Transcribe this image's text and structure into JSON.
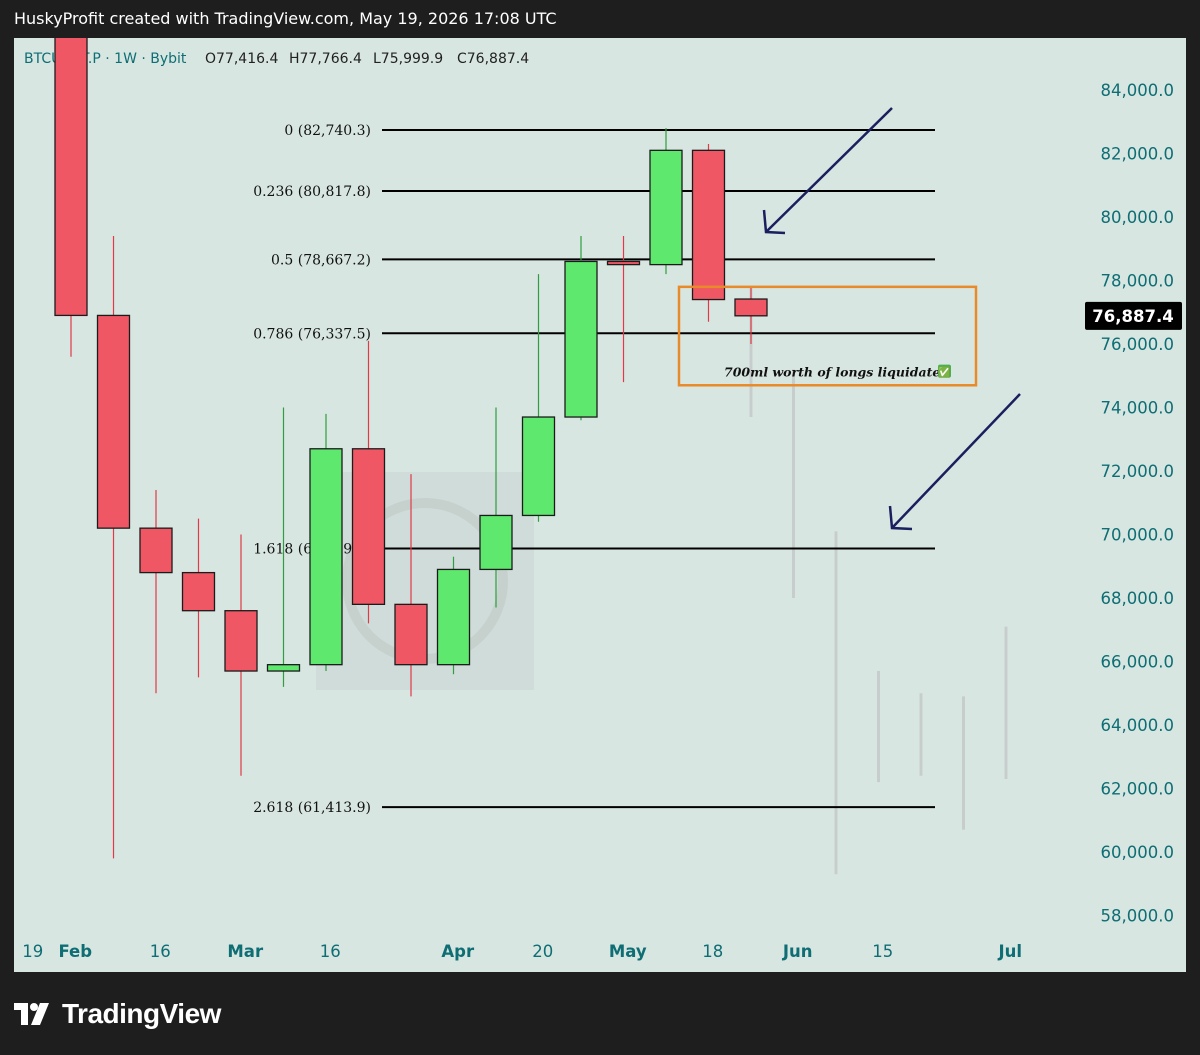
{
  "header": {
    "attribution": "HuskyProfit created with TradingView.com, May 19, 2026 17:08 UTC"
  },
  "footer": {
    "brand": "TradingView"
  },
  "colors": {
    "background": "#d8e6e2",
    "up": "#5ee86d",
    "down": "#ef5765",
    "text_axis": "#0e6e74",
    "fib_line": "#000000",
    "annotation_box": "#e88a2a",
    "arrow": "#1a1f5e",
    "ghost": "#c7cdcc"
  },
  "chart_data": {
    "type": "candlestick",
    "symbol": "BTCUSDT.P",
    "interval": "1W",
    "exchange": "Bybit",
    "legend": {
      "symbol_line": "BTCUSDT.P · 1W · Bybit",
      "open_label": "O77,416.4",
      "high_label": "H77,766.4",
      "low_label": "L75,999.9",
      "close_label": "C76,887.4"
    },
    "y_axis": {
      "range": [
        57000,
        86000
      ],
      "ticks": [
        "84,000.0",
        "82,000.0",
        "80,000.0",
        "78,000.0",
        "76,000.0",
        "74,000.0",
        "72,000.0",
        "70,000.0",
        "68,000.0",
        "66,000.0",
        "64,000.0",
        "62,000.0",
        "60,000.0",
        "58,000.0"
      ],
      "tick_values": [
        84000,
        82000,
        80000,
        78000,
        76000,
        74000,
        72000,
        70000,
        68000,
        66000,
        64000,
        62000,
        60000,
        58000
      ],
      "last_price_label": "76,887.4",
      "last_price": 76887.4
    },
    "x_axis": {
      "ticks": [
        {
          "label": "19",
          "slot": -0.9,
          "bold": false
        },
        {
          "label": "Feb",
          "slot": 0.1,
          "bold": true
        },
        {
          "label": "16",
          "slot": 2.1,
          "bold": false
        },
        {
          "label": "Mar",
          "slot": 4.1,
          "bold": true
        },
        {
          "label": "16",
          "slot": 6.1,
          "bold": false
        },
        {
          "label": "Apr",
          "slot": 9.1,
          "bold": true
        },
        {
          "label": "20",
          "slot": 11.1,
          "bold": false
        },
        {
          "label": "May",
          "slot": 13.1,
          "bold": true
        },
        {
          "label": "18",
          "slot": 15.1,
          "bold": false
        },
        {
          "label": "Jun",
          "slot": 17.1,
          "bold": true
        },
        {
          "label": "15",
          "slot": 19.1,
          "bold": false
        },
        {
          "label": "Jul",
          "slot": 22.1,
          "bold": true
        }
      ]
    },
    "candles": [
      {
        "week": "2026-01-26",
        "open": 89000,
        "high": 90500,
        "low": 75600,
        "close": 76900
      },
      {
        "week": "2026-02-02",
        "open": 76900,
        "high": 79400,
        "low": 59800,
        "close": 70200
      },
      {
        "week": "2026-02-09",
        "open": 70200,
        "high": 71400,
        "low": 65000,
        "close": 68800
      },
      {
        "week": "2026-02-16",
        "open": 68800,
        "high": 70500,
        "low": 65500,
        "close": 67600
      },
      {
        "week": "2026-02-23",
        "open": 67600,
        "high": 70000,
        "low": 62400,
        "close": 65700
      },
      {
        "week": "2026-03-02",
        "open": 65700,
        "high": 74000,
        "low": 65200,
        "close": 65900
      },
      {
        "week": "2026-03-09",
        "open": 65900,
        "high": 73800,
        "low": 65700,
        "close": 72700
      },
      {
        "week": "2026-03-16",
        "open": 72700,
        "high": 76100,
        "low": 67200,
        "close": 67800
      },
      {
        "week": "2026-03-23",
        "open": 67800,
        "high": 71900,
        "low": 64900,
        "close": 65900
      },
      {
        "week": "2026-03-30",
        "open": 65900,
        "high": 69300,
        "low": 65600,
        "close": 68900
      },
      {
        "week": "2026-04-06",
        "open": 68900,
        "high": 74000,
        "low": 67700,
        "close": 70600
      },
      {
        "week": "2026-04-13",
        "open": 70600,
        "high": 78200,
        "low": 70400,
        "close": 73700
      },
      {
        "week": "2026-04-20",
        "open": 73700,
        "high": 79400,
        "low": 73600,
        "close": 78600
      },
      {
        "week": "2026-04-27",
        "open": 78600,
        "high": 79400,
        "low": 74800,
        "close": 78500
      },
      {
        "week": "2026-05-04",
        "open": 78500,
        "high": 82800,
        "low": 78200,
        "close": 82100
      },
      {
        "week": "2026-05-11",
        "open": 82100,
        "high": 82300,
        "low": 76700,
        "close": 77400
      },
      {
        "week": "2026-05-18",
        "open": 77416.4,
        "high": 77766.4,
        "low": 75999.9,
        "close": 76887.4
      }
    ],
    "projection_wicks": [
      {
        "slot": 16,
        "high": 77800,
        "low": 73700
      },
      {
        "slot": 17,
        "high": 75200,
        "low": 68000
      },
      {
        "slot": 18,
        "high": 70100,
        "low": 59300
      },
      {
        "slot": 19,
        "high": 65700,
        "low": 62200
      },
      {
        "slot": 20,
        "high": 65000,
        "low": 62400
      },
      {
        "slot": 21,
        "high": 64900,
        "low": 60700
      },
      {
        "slot": 22,
        "high": 67100,
        "low": 62300
      }
    ],
    "fib_levels": [
      {
        "label": "0 (82,740.3)",
        "value": 82740.3
      },
      {
        "label": "0.236 (80,817.8)",
        "value": 80817.8
      },
      {
        "label": "0.5 (78,667.2)",
        "value": 78667.2
      },
      {
        "label": "0.786 (76,337.5)",
        "value": 76337.5
      },
      {
        "label": "1.618 (69,559.9)",
        "value": 69559.9
      },
      {
        "label": "2.618 (61,413.9)",
        "value": 61413.9
      }
    ],
    "annotation": {
      "text": "700ml worth of longs liquidated",
      "emoji": "✅",
      "price_top": 77800,
      "price_bottom": 74700
    }
  }
}
